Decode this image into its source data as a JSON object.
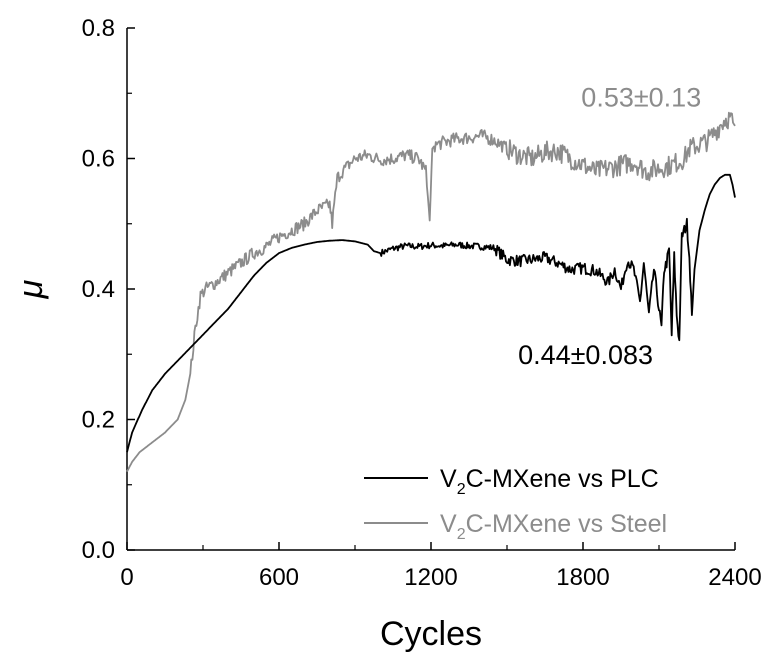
{
  "chart_data": {
    "type": "line",
    "xlabel": "Cycles",
    "ylabel": "μ",
    "xlim": [
      0,
      2400
    ],
    "ylim": [
      0,
      0.8
    ],
    "x_ticks": [
      0,
      600,
      1200,
      1800,
      2400
    ],
    "x_tick_labels": [
      "0",
      "600",
      "1200",
      "1800",
      "2400"
    ],
    "y_ticks": [
      0.0,
      0.2,
      0.4,
      0.6,
      0.8
    ],
    "y_tick_labels": [
      "0.0",
      "0.2",
      "0.4",
      "0.6",
      "0.8"
    ],
    "grid": false,
    "legend_position": "bottom-right",
    "series": [
      {
        "name": "V2C-MXene vs PLC",
        "legend_label": {
          "prefix": "V",
          "sub": "2",
          "suffix": "C-MXene vs PLC"
        },
        "color": "#000000",
        "x": [
          0,
          20,
          60,
          100,
          150,
          200,
          250,
          300,
          350,
          400,
          450,
          500,
          550,
          600,
          650,
          700,
          750,
          800,
          850,
          900,
          950,
          975,
          1000,
          1050,
          1100,
          1150,
          1200,
          1250,
          1300,
          1350,
          1400,
          1450,
          1500,
          1550,
          1600,
          1650,
          1700,
          1750,
          1800,
          1850,
          1900,
          1925,
          1950,
          1975,
          2000,
          2025,
          2040,
          2060,
          2080,
          2100,
          2110,
          2120,
          2130,
          2140,
          2150,
          2160,
          2170,
          2180,
          2190,
          2200,
          2210,
          2220,
          2230,
          2240,
          2260,
          2280,
          2300,
          2320,
          2340,
          2360,
          2380,
          2390,
          2400
        ],
        "values": [
          0.15,
          0.18,
          0.215,
          0.245,
          0.27,
          0.29,
          0.31,
          0.33,
          0.35,
          0.37,
          0.395,
          0.42,
          0.44,
          0.455,
          0.463,
          0.468,
          0.472,
          0.474,
          0.475,
          0.473,
          0.468,
          0.458,
          0.455,
          0.462,
          0.466,
          0.465,
          0.467,
          0.466,
          0.468,
          0.466,
          0.465,
          0.463,
          0.445,
          0.443,
          0.445,
          0.448,
          0.44,
          0.43,
          0.432,
          0.428,
          0.41,
          0.43,
          0.4,
          0.445,
          0.43,
          0.38,
          0.44,
          0.36,
          0.43,
          0.37,
          0.34,
          0.43,
          0.44,
          0.46,
          0.33,
          0.45,
          0.36,
          0.32,
          0.48,
          0.49,
          0.5,
          0.45,
          0.36,
          0.43,
          0.49,
          0.52,
          0.545,
          0.56,
          0.57,
          0.575,
          0.575,
          0.56,
          0.54
        ]
      },
      {
        "name": "V2C-MXene vs Steel",
        "legend_label": {
          "prefix": "V",
          "sub": "2",
          "suffix": "C-MXene vs Steel"
        },
        "color": "#8c8c8c",
        "x": [
          0,
          20,
          50,
          100,
          150,
          200,
          230,
          250,
          270,
          290,
          310,
          350,
          400,
          450,
          500,
          550,
          600,
          650,
          700,
          750,
          800,
          810,
          830,
          850,
          900,
          950,
          1000,
          1050,
          1100,
          1150,
          1180,
          1195,
          1205,
          1215,
          1250,
          1300,
          1350,
          1400,
          1450,
          1500,
          1550,
          1600,
          1650,
          1700,
          1750,
          1800,
          1850,
          1900,
          1950,
          2000,
          2050,
          2100,
          2150,
          2200,
          2220,
          2250,
          2280,
          2300,
          2320,
          2340,
          2360,
          2380,
          2400
        ],
        "values": [
          0.12,
          0.135,
          0.15,
          0.165,
          0.18,
          0.2,
          0.23,
          0.27,
          0.34,
          0.39,
          0.4,
          0.41,
          0.425,
          0.44,
          0.455,
          0.465,
          0.48,
          0.49,
          0.5,
          0.52,
          0.53,
          0.5,
          0.57,
          0.58,
          0.6,
          0.605,
          0.598,
          0.6,
          0.605,
          0.6,
          0.58,
          0.505,
          0.615,
          0.62,
          0.625,
          0.63,
          0.632,
          0.635,
          0.628,
          0.615,
          0.605,
          0.6,
          0.61,
          0.612,
          0.6,
          0.59,
          0.58,
          0.585,
          0.59,
          0.595,
          0.58,
          0.585,
          0.59,
          0.6,
          0.615,
          0.62,
          0.625,
          0.63,
          0.64,
          0.65,
          0.66,
          0.662,
          0.65
        ],
        "noise": 0.02
      }
    ],
    "annotations": [
      {
        "text": "0.53±0.13",
        "x": 2030,
        "y": 0.68,
        "color": "#8c8c8c"
      },
      {
        "text": "0.44±0.083",
        "x": 1810,
        "y": 0.285,
        "color": "#000000"
      }
    ]
  }
}
